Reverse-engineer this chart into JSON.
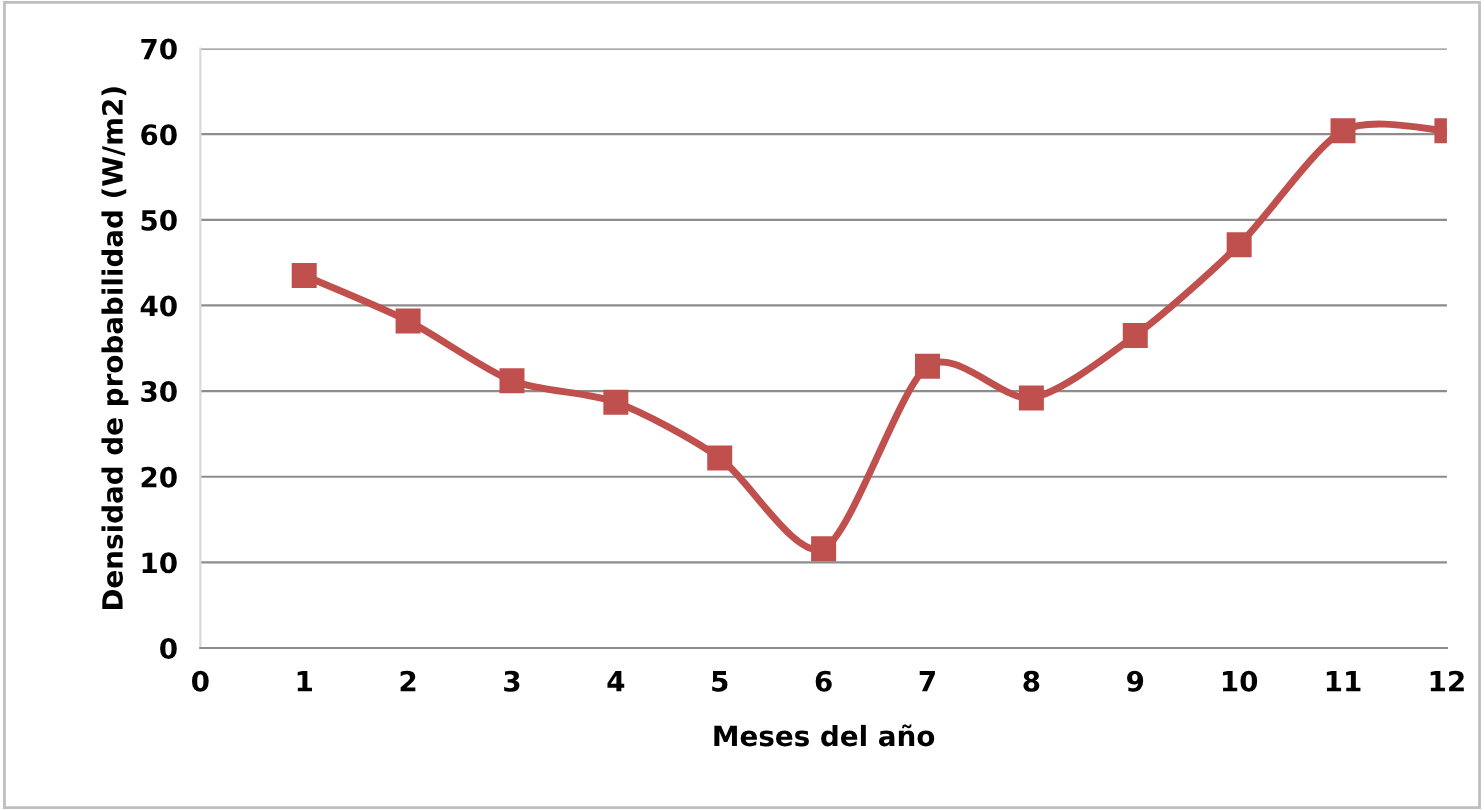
{
  "chart_data": {
    "type": "line",
    "xlabel": "Meses del año",
    "ylabel": "Densidad de probabilidad (W/m2)",
    "x": [
      1,
      2,
      3,
      4,
      5,
      6,
      7,
      8,
      9,
      10,
      11,
      12
    ],
    "series": [
      {
        "color": "#c0504d",
        "values": [
          43.5,
          38.2,
          31.2,
          28.7,
          22.2,
          11.6,
          32.9,
          29.2,
          36.5,
          47.1,
          60.4,
          60.4
        ]
      }
    ],
    "xlim": [
      0,
      12
    ],
    "xticks": [
      0,
      1,
      2,
      3,
      4,
      5,
      6,
      7,
      8,
      9,
      10,
      11,
      12
    ],
    "ylim": [
      0,
      70
    ],
    "yticks": [
      0,
      10,
      20,
      30,
      40,
      50,
      60,
      70
    ],
    "grid": "y",
    "legend": false,
    "marker": "square",
    "line_style": "solid"
  }
}
